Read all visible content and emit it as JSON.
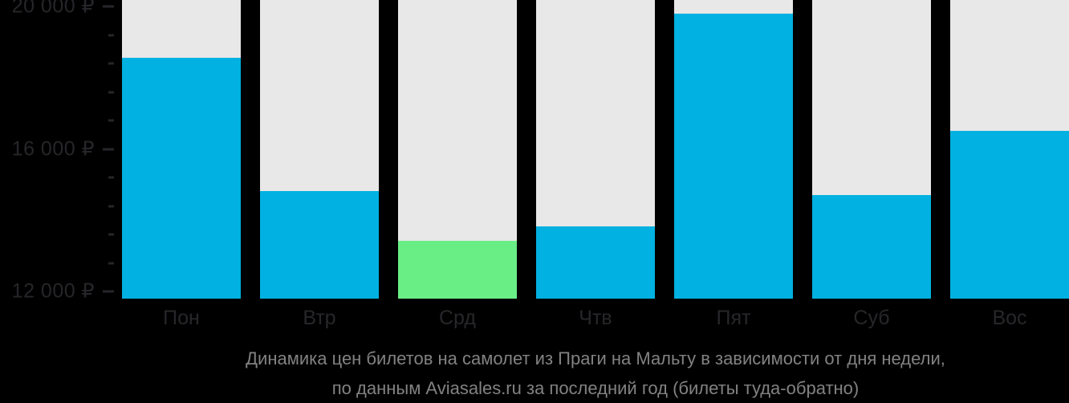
{
  "colors": {
    "background": "#000000",
    "column_background": "#e8e8e8",
    "bar_primary": "#00b1e1",
    "bar_highlight": "#69ee86",
    "axis_label": "#26262a",
    "caption_text": "#828282"
  },
  "chart_data": {
    "type": "bar",
    "title": "Динамика цен билетов на самолет из Праги на Мальту в зависимости от дня недели, по данным Aviasales.ru за последний год (билеты туда-обратно)",
    "title_line1": "Динамика цен билетов на самолет из Праги на Мальту в зависимости от дня недели,",
    "title_line2": "по данным Aviasales.ru за последний год (билеты туда-обратно)",
    "categories": [
      "Пон",
      "Втр",
      "Срд",
      "Чтв",
      "Пят",
      "Суб",
      "Вос"
    ],
    "values": [
      18550,
      14830,
      13420,
      13830,
      19800,
      14710,
      16500
    ],
    "bar_colors": [
      "#00b1e1",
      "#00b1e1",
      "#69ee86",
      "#00b1e1",
      "#00b1e1",
      "#00b1e1",
      "#00b1e1"
    ],
    "cheapest_day_index": 2,
    "currency": "₽",
    "ylim": [
      11800,
      20180
    ],
    "y_axis": {
      "major_ticks": [
        {
          "value": 20000,
          "label": "20 000 ₽"
        },
        {
          "value": 16000,
          "label": "16 000 ₽"
        },
        {
          "value": 12000,
          "label": "12 000 ₽"
        }
      ],
      "minor_ticks": [
        12800,
        13600,
        14400,
        15200,
        16800,
        17600,
        18400,
        19200
      ]
    },
    "grid": false,
    "legend": false
  }
}
